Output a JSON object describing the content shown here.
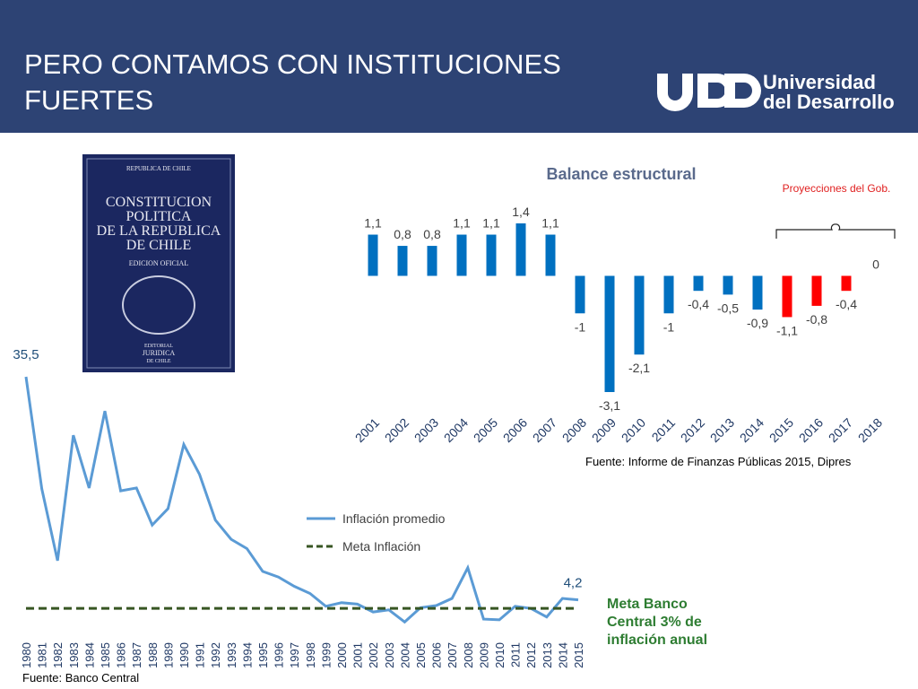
{
  "header": {
    "title": "PERO CONTAMOS CON INSTITUCIONES FUERTES",
    "logo": {
      "line1": "Universidad",
      "line2": "del Desarrollo"
    }
  },
  "book": {
    "top": "REPUBLICA DE CHILE",
    "title_lines": [
      "CONSTITUCION",
      "POLITICA",
      "DE LA REPUBLICA",
      "DE CHILE"
    ],
    "edition": "EDICION OFICIAL",
    "publisher_lines": [
      "EDITORIAL",
      "JURIDICA",
      "DE CHILE"
    ]
  },
  "chart_data": [
    {
      "type": "bar",
      "title": "Balance estructural",
      "categories": [
        "2001",
        "2002",
        "2003",
        "2004",
        "2005",
        "2006",
        "2007",
        "2008",
        "2009",
        "2010",
        "2011",
        "2012",
        "2013",
        "2014",
        "2015",
        "2016",
        "2017",
        "2018"
      ],
      "values": [
        1.1,
        0.8,
        0.8,
        1.1,
        1.1,
        1.4,
        1.1,
        -1,
        -3.1,
        -2.1,
        -1,
        -0.4,
        -0.5,
        -0.9,
        -1.1,
        -0.8,
        -0.4,
        0
      ],
      "value_labels": [
        "1,1",
        "0,8",
        "0,8",
        "1,1",
        "1,1",
        "1,4",
        "1,1",
        "-1",
        "-3,1",
        "-2,1",
        "-1",
        "-0,4",
        "-0,5",
        "-0,9",
        "-1,1",
        "-0,8",
        "-0,4",
        "0"
      ],
      "colors": [
        "#0070c0",
        "#0070c0",
        "#0070c0",
        "#0070c0",
        "#0070c0",
        "#0070c0",
        "#0070c0",
        "#0070c0",
        "#0070c0",
        "#0070c0",
        "#0070c0",
        "#0070c0",
        "#0070c0",
        "#0070c0",
        "#ff0000",
        "#ff0000",
        "#ff0000",
        "#ff0000"
      ],
      "annotation": "Proyecciones del Gob.",
      "source": "Fuente:  Informe de Finanzas Públicas 2015, Dipres"
    },
    {
      "type": "line",
      "x": [
        1980,
        1981,
        1982,
        1983,
        1984,
        1985,
        1986,
        1987,
        1988,
        1989,
        1990,
        1991,
        1992,
        1993,
        1994,
        1995,
        1996,
        1997,
        1998,
        1999,
        2000,
        2001,
        2002,
        2003,
        2004,
        2005,
        2006,
        2007,
        2008,
        2009,
        2010,
        2011,
        2012,
        2013,
        2014,
        2015
      ],
      "series": [
        {
          "name": "Inflación promedio",
          "color": "#5b9bd5",
          "values": [
            35.5,
            19.8,
            9.7,
            27.3,
            19.9,
            30.7,
            19.5,
            19.9,
            14.7,
            17.0,
            26.0,
            21.8,
            15.4,
            12.7,
            11.4,
            8.2,
            7.4,
            6.1,
            5.1,
            3.3,
            3.8,
            3.6,
            2.5,
            2.8,
            1.1,
            3.1,
            3.4,
            4.4,
            8.7,
            1.5,
            1.4,
            3.3,
            3.0,
            1.8,
            4.4,
            4.2
          ],
          "value_labels": [
            "35,5",
            null,
            null,
            null,
            null,
            null,
            null,
            null,
            null,
            null,
            null,
            null,
            null,
            null,
            null,
            null,
            null,
            null,
            null,
            null,
            null,
            null,
            null,
            null,
            null,
            null,
            null,
            null,
            null,
            null,
            null,
            null,
            null,
            null,
            null,
            "4,2"
          ]
        },
        {
          "name": "Meta Inflación",
          "color": "#375623",
          "dashed": true,
          "values": [
            3,
            3,
            3,
            3,
            3,
            3,
            3,
            3,
            3,
            3,
            3,
            3,
            3,
            3,
            3,
            3,
            3,
            3,
            3,
            3,
            3,
            3,
            3,
            3,
            3,
            3,
            3,
            3,
            3,
            3,
            3,
            3,
            3,
            3,
            3,
            3
          ]
        }
      ],
      "annotation": "Meta Banco Central 3% de inflación anual",
      "source": "Fuente: Banco Central"
    }
  ]
}
